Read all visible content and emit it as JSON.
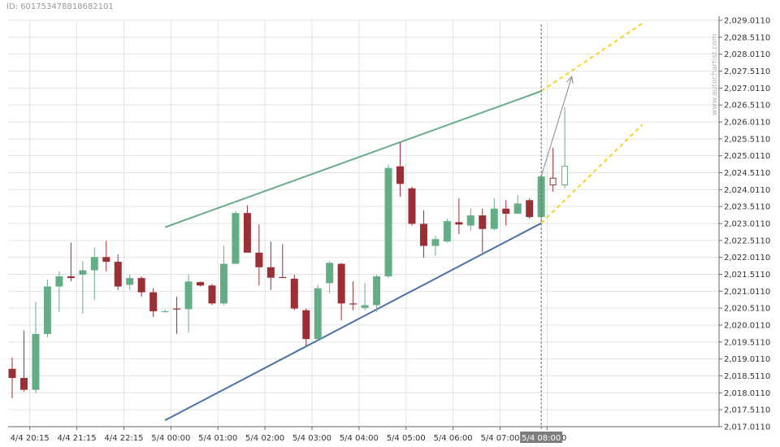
{
  "header": {
    "id_text": "ID: 6017534788186821​01"
  },
  "watermark": "www.autochartist.com",
  "chart_data": {
    "type": "candlestick",
    "y_ticks": [
      "2,017.0110",
      "2,017.5110",
      "2,018.0110",
      "2,018.5110",
      "2,019.0110",
      "2,019.5110",
      "2,020.0110",
      "2,020.5110",
      "2,021.0110",
      "2,021.5110",
      "2,022.0110",
      "2,022.5110",
      "2,023.0110",
      "2,023.5110",
      "2,024.0110",
      "2,024.5110",
      "2,025.0110",
      "2,025.5110",
      "2,026.0110",
      "2,026.5110",
      "2,027.0110",
      "2,027.5110",
      "2,028.0110",
      "2,028.5110",
      "2,029.0110"
    ],
    "ylim": [
      2017.011,
      2029.011
    ],
    "x_ticks": [
      {
        "index": 1.5,
        "label": "4/4 20:15"
      },
      {
        "index": 5.5,
        "label": "4/4 21:15"
      },
      {
        "index": 9.5,
        "label": "4/4 22:15"
      },
      {
        "index": 13.5,
        "label": "5/4 00:00"
      },
      {
        "index": 17.5,
        "label": "5/4 01:00"
      },
      {
        "index": 21.5,
        "label": "5/4 02:00"
      },
      {
        "index": 25.5,
        "label": "5/4 03:00"
      },
      {
        "index": 29.5,
        "label": "5/4 04:00"
      },
      {
        "index": 33.5,
        "label": "5/4 05:00"
      },
      {
        "index": 37.5,
        "label": "5/4 06:00"
      },
      {
        "index": 41.5,
        "label": "5/4 07:00"
      },
      {
        "index": 45.5,
        "label": "5/4 08:00"
      }
    ],
    "current_time_label": "5/4 08:00",
    "current_index": 45,
    "candles": [
      {
        "o": 2018.72,
        "h": 2019.05,
        "l": 2017.85,
        "c": 2018.45
      },
      {
        "o": 2018.45,
        "h": 2019.85,
        "l": 2018.05,
        "c": 2018.1
      },
      {
        "o": 2018.1,
        "h": 2020.7,
        "l": 2018.0,
        "c": 2019.75
      },
      {
        "o": 2019.75,
        "h": 2021.35,
        "l": 2019.65,
        "c": 2021.15
      },
      {
        "o": 2021.15,
        "h": 2021.6,
        "l": 2020.4,
        "c": 2021.45
      },
      {
        "o": 2021.45,
        "h": 2022.45,
        "l": 2021.3,
        "c": 2021.4
      },
      {
        "o": 2021.5,
        "h": 2021.9,
        "l": 2020.35,
        "c": 2021.63
      },
      {
        "o": 2021.63,
        "h": 2022.3,
        "l": 2020.75,
        "c": 2022.02
      },
      {
        "o": 2022.02,
        "h": 2022.5,
        "l": 2021.6,
        "c": 2021.88
      },
      {
        "o": 2021.88,
        "h": 2022.1,
        "l": 2021.05,
        "c": 2021.15
      },
      {
        "o": 2021.2,
        "h": 2021.5,
        "l": 2021.05,
        "c": 2021.4
      },
      {
        "o": 2021.4,
        "h": 2021.45,
        "l": 2020.85,
        "c": 2020.98
      },
      {
        "o": 2020.98,
        "h": 2021.1,
        "l": 2020.25,
        "c": 2020.42
      },
      {
        "o": 2020.42,
        "h": 2020.48,
        "l": 2020.4,
        "c": 2020.42
      },
      {
        "o": 2020.5,
        "h": 2020.85,
        "l": 2019.75,
        "c": 2020.48
      },
      {
        "o": 2020.48,
        "h": 2021.5,
        "l": 2019.8,
        "c": 2021.3
      },
      {
        "o": 2021.28,
        "h": 2021.3,
        "l": 2021.15,
        "c": 2021.18
      },
      {
        "o": 2021.18,
        "h": 2021.23,
        "l": 2020.6,
        "c": 2020.65
      },
      {
        "o": 2020.65,
        "h": 2022.35,
        "l": 2020.6,
        "c": 2021.82
      },
      {
        "o": 2021.82,
        "h": 2023.38,
        "l": 2021.85,
        "c": 2023.32
      },
      {
        "o": 2023.32,
        "h": 2023.55,
        "l": 2022.25,
        "c": 2022.15
      },
      {
        "o": 2022.15,
        "h": 2022.98,
        "l": 2021.18,
        "c": 2021.72
      },
      {
        "o": 2021.72,
        "h": 2022.48,
        "l": 2021.05,
        "c": 2021.41
      },
      {
        "o": 2021.43,
        "h": 2022.4,
        "l": 2021.4,
        "c": 2021.41
      },
      {
        "o": 2021.38,
        "h": 2021.5,
        "l": 2020.45,
        "c": 2020.5
      },
      {
        "o": 2020.45,
        "h": 2020.5,
        "l": 2019.4,
        "c": 2019.6
      },
      {
        "o": 2019.6,
        "h": 2021.2,
        "l": 2019.55,
        "c": 2021.1
      },
      {
        "o": 2021.25,
        "h": 2021.9,
        "l": 2020.95,
        "c": 2021.85
      },
      {
        "o": 2021.82,
        "h": 2021.85,
        "l": 2020.15,
        "c": 2020.65
      },
      {
        "o": 2020.65,
        "h": 2021.3,
        "l": 2020.45,
        "c": 2020.63
      },
      {
        "o": 2020.52,
        "h": 2021.25,
        "l": 2020.45,
        "c": 2020.6
      },
      {
        "o": 2020.6,
        "h": 2021.5,
        "l": 2020.4,
        "c": 2021.45
      },
      {
        "o": 2021.45,
        "h": 2024.75,
        "l": 2021.4,
        "c": 2024.65
      },
      {
        "o": 2024.7,
        "h": 2025.4,
        "l": 2023.8,
        "c": 2024.18
      },
      {
        "o": 2024.05,
        "h": 2024.1,
        "l": 2022.95,
        "c": 2023.0
      },
      {
        "o": 2023.0,
        "h": 2023.4,
        "l": 2022.0,
        "c": 2022.35
      },
      {
        "o": 2022.35,
        "h": 2022.65,
        "l": 2022.05,
        "c": 2022.55
      },
      {
        "o": 2022.48,
        "h": 2023.15,
        "l": 2022.45,
        "c": 2023.08
      },
      {
        "o": 2023.05,
        "h": 2023.75,
        "l": 2022.7,
        "c": 2022.98
      },
      {
        "o": 2022.95,
        "h": 2023.45,
        "l": 2022.8,
        "c": 2023.25
      },
      {
        "o": 2023.25,
        "h": 2023.45,
        "l": 2022.15,
        "c": 2022.85
      },
      {
        "o": 2022.85,
        "h": 2023.75,
        "l": 2022.8,
        "c": 2023.45
      },
      {
        "o": 2023.45,
        "h": 2023.7,
        "l": 2022.95,
        "c": 2023.3
      },
      {
        "o": 2023.3,
        "h": 2023.85,
        "l": 2023.3,
        "c": 2023.6
      },
      {
        "o": 2023.7,
        "h": 2023.75,
        "l": 2023.15,
        "c": 2023.2
      },
      {
        "o": 2023.2,
        "h": 2024.45,
        "l": 2023.1,
        "c": 2024.4
      }
    ],
    "forecast_candles": [
      {
        "o": 2024.35,
        "h": 2025.25,
        "l": 2023.95,
        "c": 2024.15,
        "style": "red-outline"
      },
      {
        "o": 2024.15,
        "h": 2026.45,
        "l": 2024.05,
        "c": 2024.7,
        "style": "green-outline"
      }
    ],
    "pattern": {
      "upper_line": {
        "from": {
          "index": 13,
          "value": 2022.9
        },
        "to": {
          "index": 45,
          "value": 2026.92
        },
        "color": "#67ad8a"
      },
      "lower_line": {
        "from": {
          "index": 13,
          "value": 2017.2
        },
        "to": {
          "index": 45,
          "value": 2023.02
        },
        "color": "#4a72a8"
      },
      "upper_projection": {
        "from": {
          "index": 45,
          "value": 2026.92
        },
        "to": {
          "index": 53.6,
          "value": 2028.92
        },
        "color": "#f5d327"
      },
      "lower_projection": {
        "from": {
          "index": 45,
          "value": 2023.02
        },
        "to": {
          "index": 53.6,
          "value": 2025.93
        },
        "color": "#f5d327"
      },
      "target_arrow": {
        "from": {
          "index": 45,
          "value": 2024.4
        },
        "to": {
          "index": 47.6,
          "value": 2027.35
        },
        "color": "#888888"
      }
    },
    "colors": {
      "bull": "#64ae85",
      "bear": "#9a2f36",
      "grid": "#e3e3e3",
      "cursor_label_bg": "#7d7d7d"
    }
  }
}
